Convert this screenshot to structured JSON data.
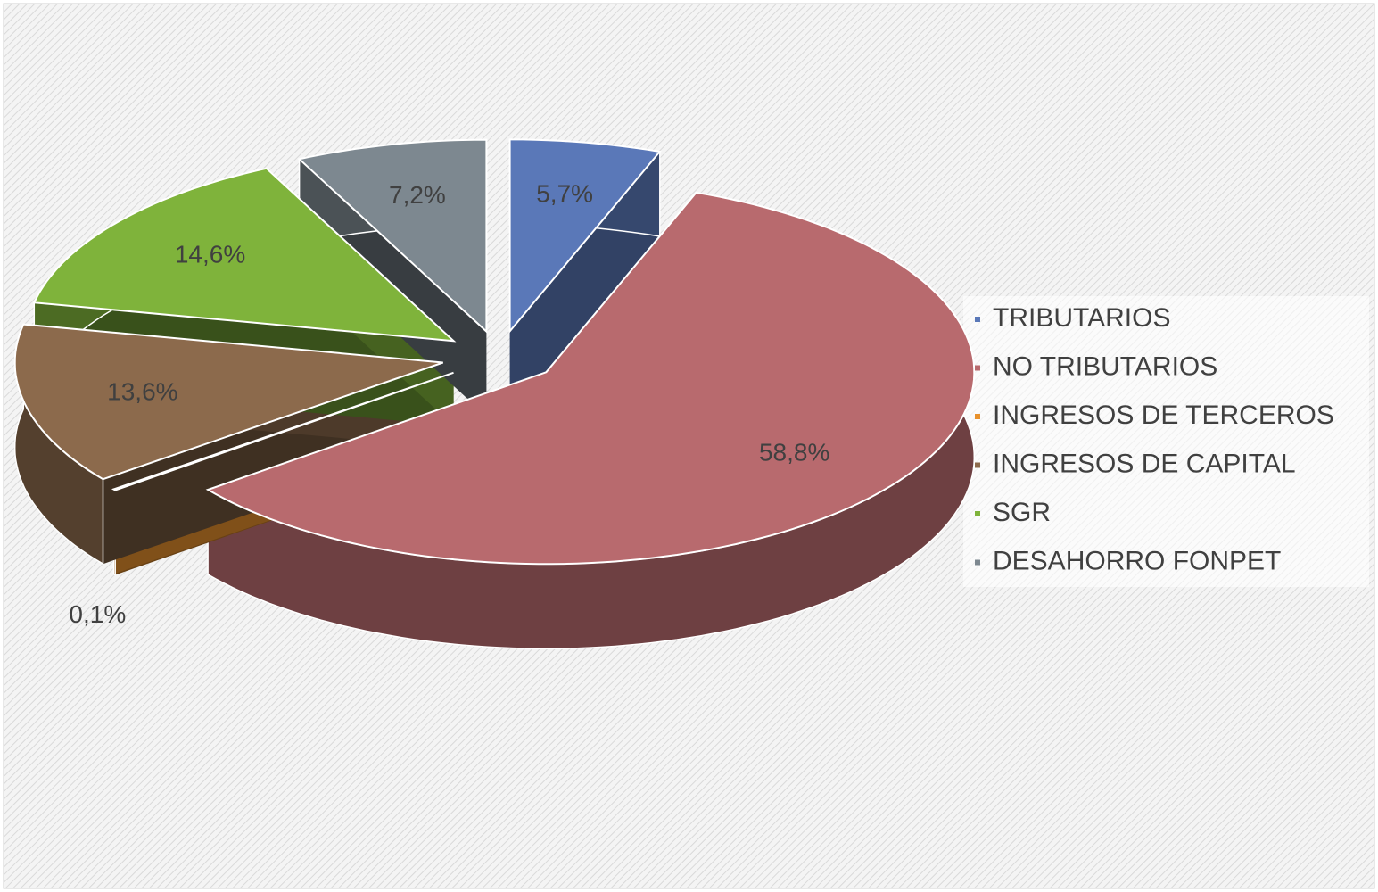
{
  "chart_data": {
    "type": "pie",
    "categories": [
      "TRIBUTARIOS",
      "NO TRIBUTARIOS",
      "INGRESOS DE TERCEROS",
      "INGRESOS DE CAPITAL",
      "SGR",
      "DESAHORRO FONPET"
    ],
    "values": [
      5.7,
      58.8,
      0.1,
      13.6,
      14.6,
      7.2
    ],
    "value_labels": [
      "5,7%",
      "58,8%",
      "0,1%",
      "13,6%",
      "14,6%",
      "7,2%"
    ],
    "colors": [
      "#5a78b8",
      "#b86a6e",
      "#e8912d",
      "#8c6a4c",
      "#7fb33b",
      "#7d8890"
    ],
    "legend": "right"
  }
}
